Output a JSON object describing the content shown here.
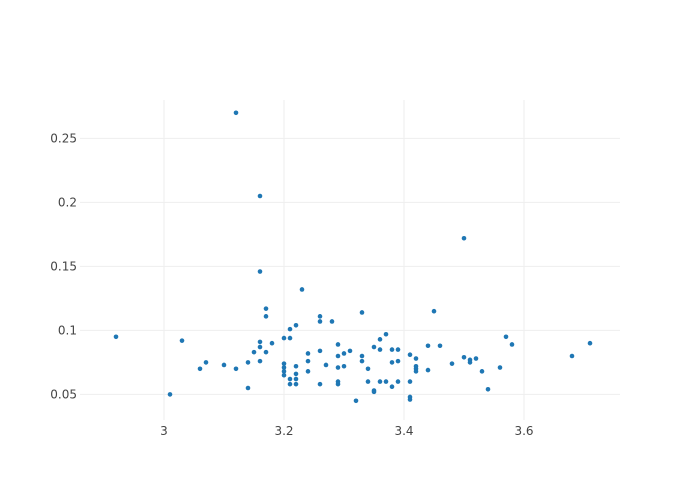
{
  "chart_data": {
    "type": "scatter",
    "title": "",
    "xlabel": "",
    "ylabel": "",
    "xlim": [
      2.86,
      3.76
    ],
    "ylim": [
      0.03,
      0.28
    ],
    "grid": true,
    "x_ticks": [
      3,
      3.2,
      3.4,
      3.6
    ],
    "x_tick_labels": [
      "3",
      "3.2",
      "3.4",
      "3.6"
    ],
    "y_ticks": [
      0.05,
      0.1,
      0.15,
      0.2,
      0.25
    ],
    "y_tick_labels": [
      "0.05",
      "0.1",
      "0.15",
      "0.2",
      "0.25"
    ],
    "color": "#1f77b4",
    "series": [
      {
        "points": [
          [
            2.92,
            0.095
          ],
          [
            3.01,
            0.05
          ],
          [
            3.03,
            0.092
          ],
          [
            3.06,
            0.07
          ],
          [
            3.07,
            0.075
          ],
          [
            3.1,
            0.073
          ],
          [
            3.12,
            0.27
          ],
          [
            3.12,
            0.07
          ],
          [
            3.14,
            0.075
          ],
          [
            3.14,
            0.055
          ],
          [
            3.15,
            0.083
          ],
          [
            3.16,
            0.205
          ],
          [
            3.16,
            0.146
          ],
          [
            3.16,
            0.091
          ],
          [
            3.16,
            0.087
          ],
          [
            3.16,
            0.076
          ],
          [
            3.17,
            0.117
          ],
          [
            3.17,
            0.111
          ],
          [
            3.17,
            0.083
          ],
          [
            3.18,
            0.09
          ],
          [
            3.2,
            0.094
          ],
          [
            3.2,
            0.074
          ],
          [
            3.2,
            0.071
          ],
          [
            3.2,
            0.068
          ],
          [
            3.2,
            0.065
          ],
          [
            3.21,
            0.101
          ],
          [
            3.21,
            0.094
          ],
          [
            3.21,
            0.062
          ],
          [
            3.21,
            0.058
          ],
          [
            3.22,
            0.104
          ],
          [
            3.22,
            0.072
          ],
          [
            3.22,
            0.066
          ],
          [
            3.22,
            0.062
          ],
          [
            3.22,
            0.058
          ],
          [
            3.23,
            0.132
          ],
          [
            3.24,
            0.082
          ],
          [
            3.24,
            0.076
          ],
          [
            3.24,
            0.068
          ],
          [
            3.26,
            0.111
          ],
          [
            3.26,
            0.107
          ],
          [
            3.26,
            0.084
          ],
          [
            3.26,
            0.058
          ],
          [
            3.27,
            0.073
          ],
          [
            3.28,
            0.107
          ],
          [
            3.29,
            0.089
          ],
          [
            3.29,
            0.08
          ],
          [
            3.29,
            0.071
          ],
          [
            3.29,
            0.06
          ],
          [
            3.29,
            0.058
          ],
          [
            3.3,
            0.082
          ],
          [
            3.3,
            0.072
          ],
          [
            3.31,
            0.084
          ],
          [
            3.32,
            0.045
          ],
          [
            3.33,
            0.114
          ],
          [
            3.33,
            0.08
          ],
          [
            3.33,
            0.076
          ],
          [
            3.34,
            0.07
          ],
          [
            3.34,
            0.06
          ],
          [
            3.35,
            0.087
          ],
          [
            3.35,
            0.053
          ],
          [
            3.35,
            0.052
          ],
          [
            3.36,
            0.093
          ],
          [
            3.36,
            0.085
          ],
          [
            3.36,
            0.06
          ],
          [
            3.37,
            0.097
          ],
          [
            3.37,
            0.06
          ],
          [
            3.38,
            0.085
          ],
          [
            3.38,
            0.075
          ],
          [
            3.38,
            0.056
          ],
          [
            3.39,
            0.085
          ],
          [
            3.39,
            0.076
          ],
          [
            3.39,
            0.06
          ],
          [
            3.41,
            0.081
          ],
          [
            3.41,
            0.06
          ],
          [
            3.41,
            0.048
          ],
          [
            3.41,
            0.046
          ],
          [
            3.42,
            0.078
          ],
          [
            3.42,
            0.072
          ],
          [
            3.42,
            0.07
          ],
          [
            3.42,
            0.068
          ],
          [
            3.44,
            0.088
          ],
          [
            3.44,
            0.069
          ],
          [
            3.45,
            0.115
          ],
          [
            3.46,
            0.088
          ],
          [
            3.48,
            0.074
          ],
          [
            3.5,
            0.172
          ],
          [
            3.5,
            0.079
          ],
          [
            3.51,
            0.077
          ],
          [
            3.51,
            0.075
          ],
          [
            3.52,
            0.078
          ],
          [
            3.53,
            0.068
          ],
          [
            3.54,
            0.054
          ],
          [
            3.56,
            0.071
          ],
          [
            3.57,
            0.095
          ],
          [
            3.58,
            0.089
          ],
          [
            3.68,
            0.08
          ],
          [
            3.71,
            0.09
          ]
        ]
      }
    ]
  }
}
